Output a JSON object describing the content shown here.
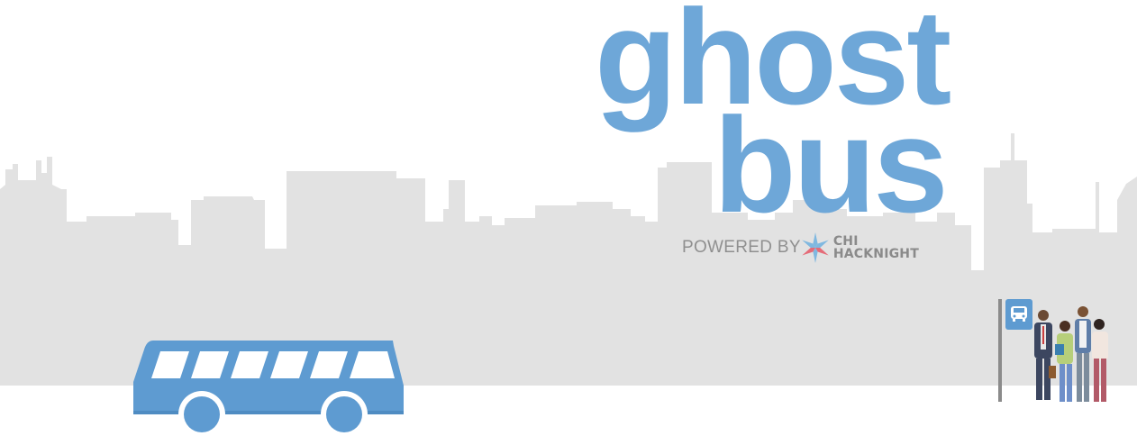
{
  "brand": {
    "title_line1": "ghost",
    "title_line2": "bus",
    "powered_by": "POWERED BY",
    "sponsor_line1": "CHI",
    "sponsor_line2": "HACKNIGHT"
  },
  "colors": {
    "brand_blue": "#6ea7d8",
    "bus_blue": "#5e9bd1",
    "skyline_gray": "#e2e2e2",
    "ground_white": "#ffffff",
    "star_blue": "#7fb8e0",
    "star_red": "#e56b78"
  },
  "icons": {
    "sponsor_mark": "chicago-star-icon",
    "bus_stop_sign": "bus-icon"
  }
}
